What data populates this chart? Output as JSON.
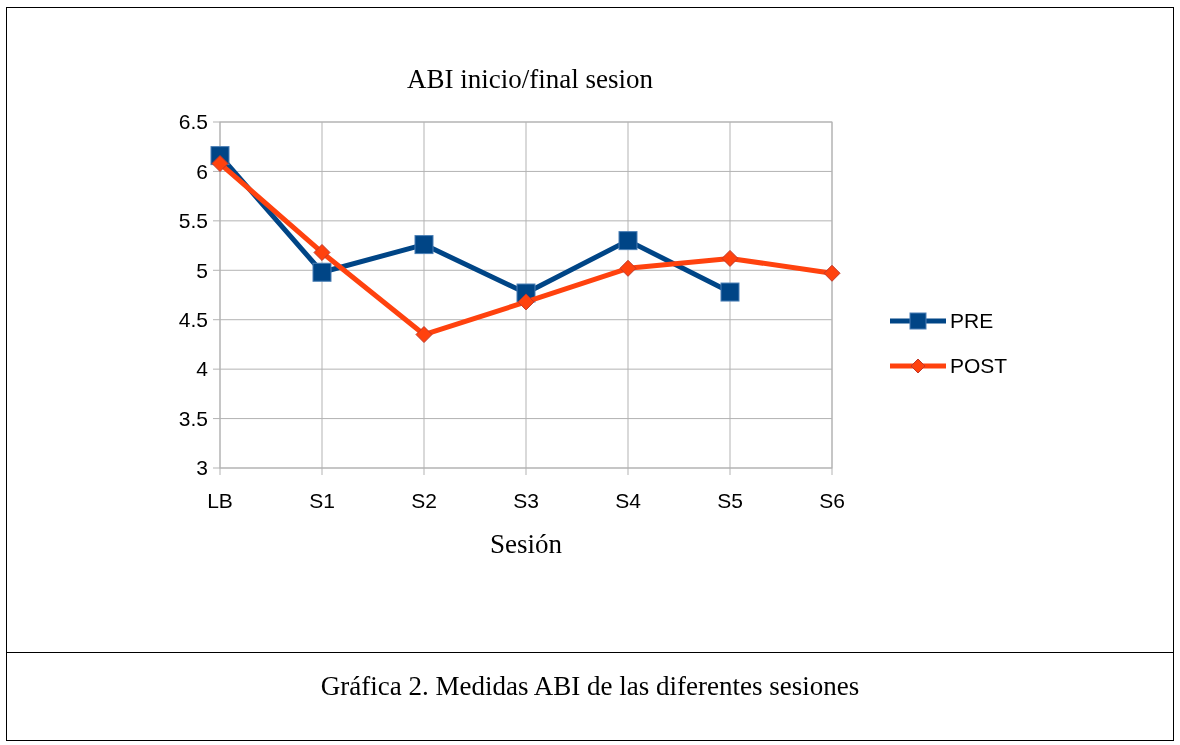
{
  "chart_data": {
    "type": "line",
    "title": "ABI inicio/final sesion",
    "xlabel": "Sesión",
    "categories": [
      "LB",
      "S1",
      "S2",
      "S3",
      "S4",
      "S5",
      "S6"
    ],
    "series": [
      {
        "name": "PRE",
        "color": "#004586",
        "values": [
          6.16,
          4.98,
          5.26,
          4.77,
          5.3,
          4.78,
          null
        ],
        "marker": "square"
      },
      {
        "name": "POST",
        "color": "#ff420e",
        "values": [
          6.08,
          5.18,
          4.35,
          4.68,
          5.02,
          5.12,
          4.97
        ],
        "marker": "diamond"
      }
    ],
    "ylim": [
      3,
      6.5
    ],
    "yticks": [
      3,
      {
        "value": 3.5,
        "label": "3.5"
      },
      4,
      {
        "value": 4.5,
        "label": "4.5"
      },
      5,
      {
        "value": 5.5,
        "label": "5.5"
      },
      6,
      {
        "value": 6.5,
        "label": "6.5"
      }
    ],
    "grid": true,
    "legend": "right",
    "line_style": "solid",
    "annotations": [
      "Gráfica 2. Medidas ABI de las diferentes sesiones"
    ]
  }
}
